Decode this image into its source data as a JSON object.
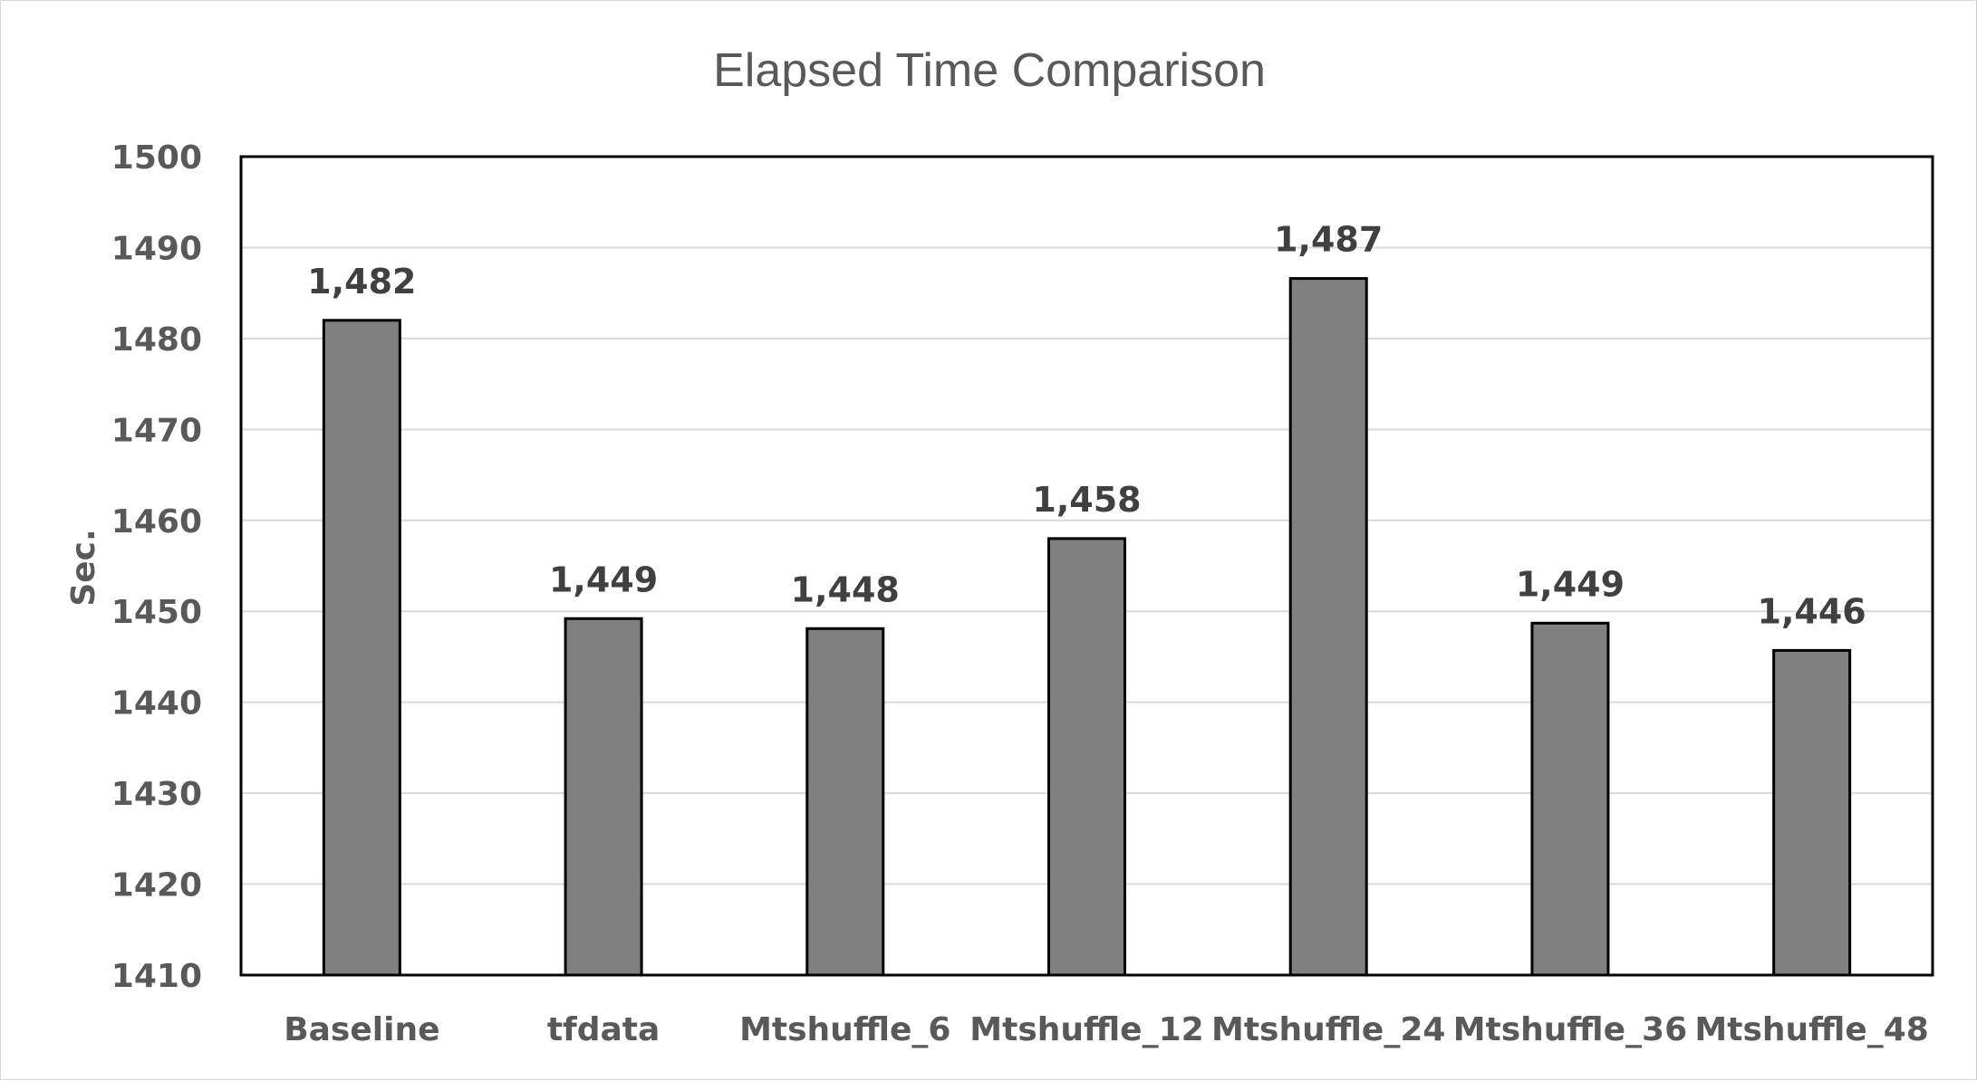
{
  "chart_data": {
    "type": "bar",
    "title": "Elapsed Time Comparison",
    "xlabel": "",
    "ylabel": "Sec.",
    "ylim": [
      1410,
      1500
    ],
    "yticks": [
      1410,
      1420,
      1430,
      1440,
      1450,
      1460,
      1470,
      1480,
      1490,
      1500
    ],
    "ytick_labels": [
      "1410",
      "1420",
      "1430",
      "1440",
      "1450",
      "1460",
      "1470",
      "1480",
      "1490",
      "1500"
    ],
    "categories": [
      "Baseline",
      "tfdata",
      "Mtshuffle_6",
      "Mtshuffle_12",
      "Mtshuffle_24",
      "Mtshuffle_36",
      "Mtshuffle_48"
    ],
    "values": [
      1482,
      1449.2,
      1448.1,
      1458,
      1486.6,
      1448.7,
      1445.7
    ],
    "data_labels": [
      "1,482",
      "1,449",
      "1,448",
      "1,458",
      "1,487",
      "1,449",
      "1,446"
    ],
    "grid": true,
    "legend": "none",
    "colors": {
      "bar_fill": "#808080",
      "bar_stroke": "#000000",
      "grid": "#d9d9d9",
      "axis_text": "#595959",
      "data_label": "#404040"
    }
  }
}
